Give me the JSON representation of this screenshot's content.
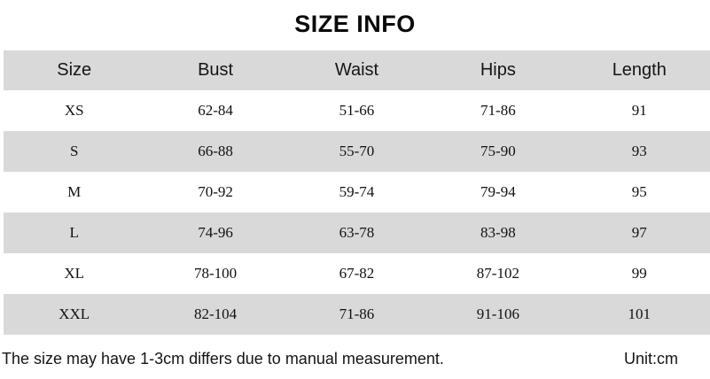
{
  "title": "SIZE INFO",
  "table": {
    "headers": [
      "Size",
      "Bust",
      "Waist",
      "Hips",
      "Length"
    ],
    "rows": [
      [
        "XS",
        "62-84",
        "51-66",
        "71-86",
        "91"
      ],
      [
        "S",
        "66-88",
        "55-70",
        "75-90",
        "93"
      ],
      [
        "M",
        "70-92",
        "59-74",
        "79-94",
        "95"
      ],
      [
        "L",
        "74-96",
        "63-78",
        "83-98",
        "97"
      ],
      [
        "XL",
        "78-100",
        "67-82",
        "87-102",
        "99"
      ],
      [
        "XXL",
        "82-104",
        "71-86",
        "91-106",
        "101"
      ]
    ]
  },
  "footer": {
    "note": "The size may have 1-3cm differs due to manual measurement.",
    "unit": "Unit:cm"
  },
  "colors": {
    "row_shade": "#d9d9d9",
    "background": "#ffffff",
    "text": "#000000"
  }
}
